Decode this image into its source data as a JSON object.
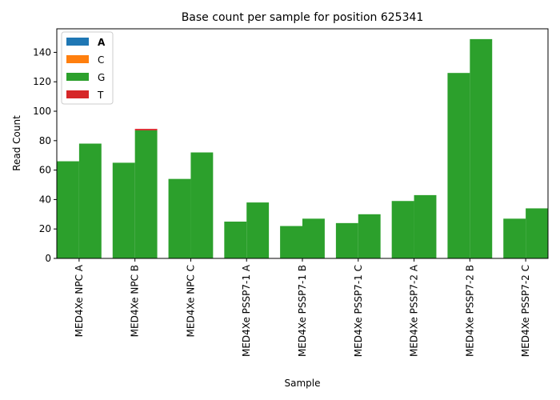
{
  "chart_data": {
    "type": "bar",
    "title": "Base count per sample for position 625341",
    "xlabel": "Sample",
    "ylabel": "Read Count",
    "ylim": [
      0,
      156
    ],
    "yticks": [
      0,
      20,
      40,
      60,
      80,
      100,
      120,
      140
    ],
    "grid": false,
    "legend_position": "top-left",
    "categories": [
      "MED4Xe NPC A",
      "MED4Xe NPC B",
      "MED4Xe NPC C",
      "MED4Xe PSSP7-1 A",
      "MED4Xe PSSP7-1 B",
      "MED4Xe PSSP7-1 C",
      "MED4Xe PSSP7-2 A",
      "MED4Xe PSSP7-2 B",
      "MED4Xe PSSP7-2 C"
    ],
    "bars_per_category": 2,
    "series": [
      {
        "name": "A",
        "color": "#1f77b4",
        "bold": true,
        "values": [
          [
            0,
            0
          ],
          [
            0,
            0
          ],
          [
            0,
            0
          ],
          [
            0,
            0
          ],
          [
            0,
            0
          ],
          [
            0,
            0
          ],
          [
            0,
            0
          ],
          [
            0,
            0
          ],
          [
            0,
            0
          ]
        ]
      },
      {
        "name": "C",
        "color": "#ff7f0e",
        "values": [
          [
            0,
            0
          ],
          [
            0,
            0
          ],
          [
            0,
            0
          ],
          [
            0,
            0
          ],
          [
            0,
            0
          ],
          [
            0,
            0
          ],
          [
            0,
            0
          ],
          [
            0,
            0
          ],
          [
            0,
            0
          ]
        ]
      },
      {
        "name": "G",
        "color": "#2ca02c",
        "values": [
          [
            66,
            78
          ],
          [
            65,
            87
          ],
          [
            54,
            72
          ],
          [
            25,
            38
          ],
          [
            22,
            27
          ],
          [
            24,
            30
          ],
          [
            39,
            43
          ],
          [
            126,
            149
          ],
          [
            27,
            34
          ]
        ]
      },
      {
        "name": "T",
        "color": "#d62728",
        "values": [
          [
            0,
            0
          ],
          [
            0,
            1
          ],
          [
            0,
            0
          ],
          [
            0,
            0
          ],
          [
            0,
            0
          ],
          [
            0,
            0
          ],
          [
            0,
            0
          ],
          [
            0,
            0
          ],
          [
            0,
            0
          ]
        ]
      }
    ]
  }
}
